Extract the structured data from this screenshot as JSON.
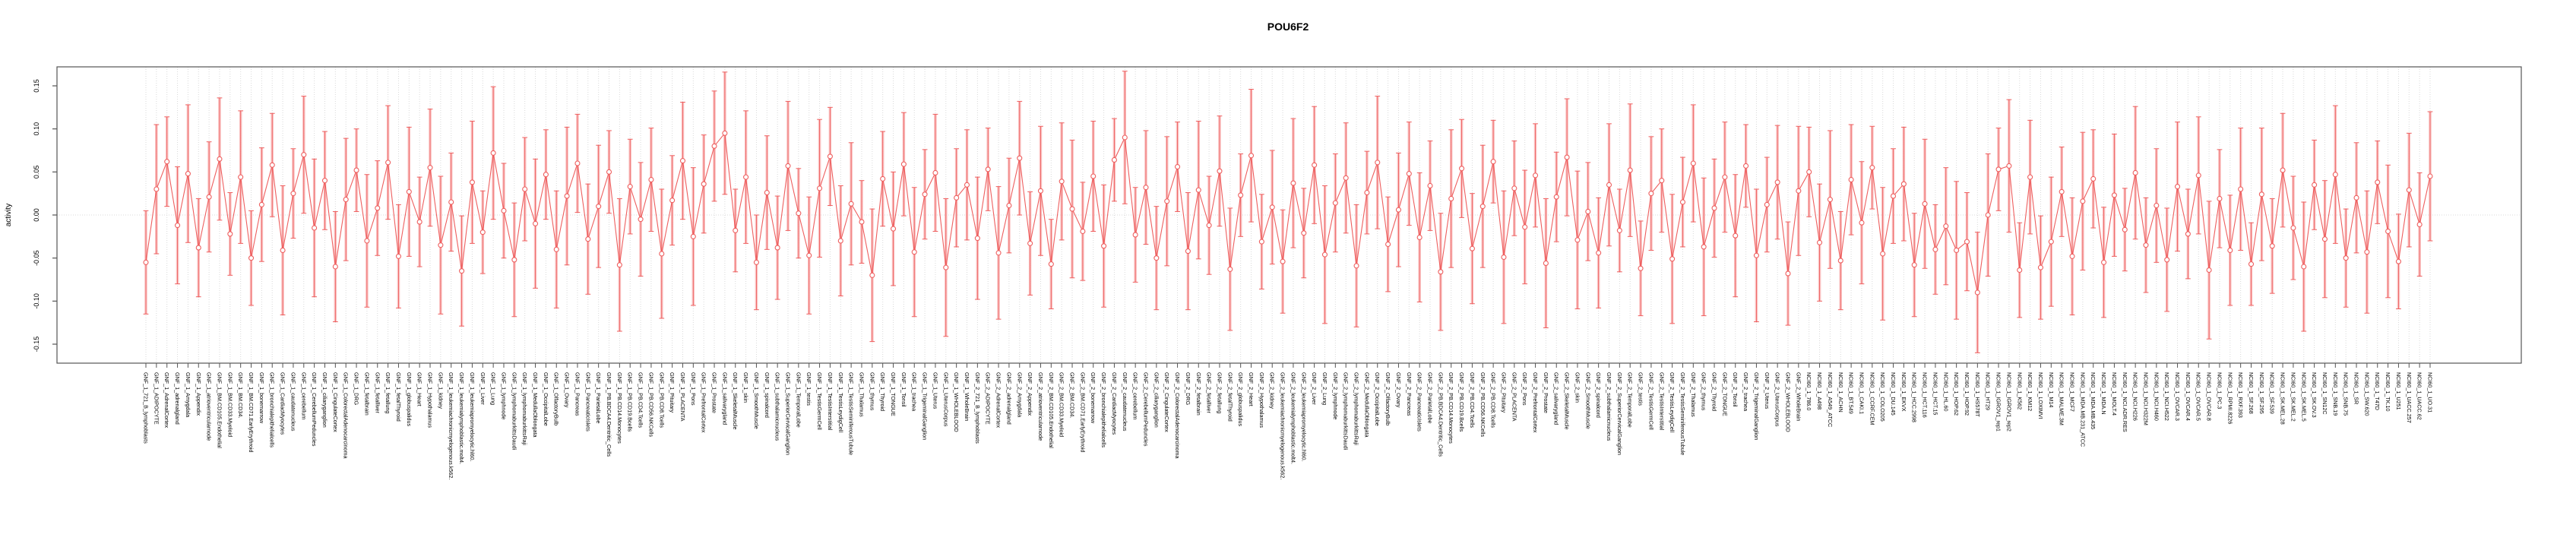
{
  "chart": {
    "title": "POU6F2",
    "ylabel": "activity"
  },
  "chart_data": {
    "type": "line",
    "title": "POU6F2",
    "xlabel": "",
    "ylabel": "activity",
    "ylim": [
      -0.172,
      0.172
    ],
    "yticks": [
      -0.15,
      -0.1,
      -0.05,
      0.0,
      0.05,
      0.1,
      0.15
    ],
    "grid": "vertical dotted gridline at every category; horizontal dotted line at 0.00",
    "legend_position": "none",
    "marker": "open-circle",
    "colors": {
      "series": "#ee5f5f",
      "errorbar_band": "#f9b6b6",
      "grid": "#d9d9d9",
      "box": "#555555",
      "text": "#000000"
    },
    "categories": [
      "GNF_1_721_B_lymphoblasts",
      "GNF_1_ADIPOCYTE",
      "GNF_1_AdrenalCortex",
      "GNF_1_adrenalgland",
      "GNF_1_Amygdala",
      "GNF_1_Appendix",
      "GNF_1_atrioventricularnode",
      "GNF_1_BM.CD105.Endothelial",
      "GNF_1_BM.CD33.Myeloid",
      "GNF_1_BM.CD34.",
      "GNF_1_BM.CD71.EarlyErythroid",
      "GNF_1_bonemarrow",
      "GNF_1_bronchialepithelialcells",
      "GNF_1_CardiacMyocytes",
      "GNF_1_caudatenucleus",
      "GNF_1_cerebellum",
      "GNF_1_CerebellumPeduncles",
      "GNF_1_ciliaryganglion",
      "GNF_1_CingulateCortex",
      "GNF_1_ColorectalAdenocarcinoma",
      "GNF_1_DRG",
      "GNF_1_fetalbrain",
      "GNF_1_fetalliver",
      "GNF_1_fetallung",
      "GNF_1_fetalThyroid",
      "GNF_1_globuspalidus",
      "GNF_1_Heart",
      "GNF_1_Hypothalamus",
      "GNF_1_kidney",
      "GNF_1_leukemiachronicmyelogenous.k562.",
      "GNF_1_leukemialymphoblastic.molt4.",
      "GNF_1_leukemiapromyelocytic.hl60.",
      "GNF_1_Liver",
      "GNF_1_Lung",
      "GNF_1_lymphnode",
      "GNF_1_lymphomaburkittsDaudi",
      "GNF_1_lymphomaburkittsRaji",
      "GNF_1_MedullaOblongata",
      "GNF_1_OccipitalLobe",
      "GNF_1_OlfactoryBulb",
      "GNF_1_Ovary",
      "GNF_1_Pancreas",
      "GNF_1_PancreaticIslets",
      "GNF_1_ParietalLobe",
      "GNF_1_PB.BDCA4.Dentritic_Cells",
      "GNF_1_PB.CD14.Monocytes",
      "GNF_1_PB.CD19.Bcells",
      "GNF_1_PB.CD4.Tcells",
      "GNF_1_PB.CD56.NKCells",
      "GNF_1_PB.CD8.Tcells",
      "GNF_1_Pituitary",
      "GNF_1_PLACENTA",
      "GNF_1_Pons",
      "GNF_1_PrefrontalCortex",
      "GNF_1_Prostate",
      "GNF_1_salivarygland",
      "GNF_1_SkeletalMuscle",
      "GNF_1_skin",
      "GNF_1_SmoothMuscle",
      "GNF_1_spinalcord",
      "GNF_1_subthalamicnucleus",
      "GNF_1_SuperiorCervicalGanglion",
      "GNF_1_TemporalLobe",
      "GNF_1_testis",
      "GNF_1_TestisGermCell",
      "GNF_1_TestisInterstitial",
      "GNF_1_TestisLeydigCell",
      "GNF_1_TestisSeminiferousTubule",
      "GNF_1_Thalamus",
      "GNF_1_thymus",
      "GNF_1_Thyroid",
      "GNF_1_TONGUE",
      "GNF_1_Tonsil",
      "GNF_1_trachea",
      "GNF_1_TrigeminalGanglion",
      "GNF_1_Uterus",
      "GNF_1_UterusCorpus",
      "GNF_1_WHOLEBLOOD",
      "GNF_1_WholeBrain",
      "GNF_2_721_B_lymphoblasts",
      "GNF_2_ADIPOCYTE",
      "GNF_2_AdrenalCortex",
      "GNF_2_adrenalgland",
      "GNF_2_Amygdala",
      "GNF_2_Appendix",
      "GNF_2_atrioventricularnode",
      "GNF_2_BM.CD105.Endothelial",
      "GNF_2_BM.CD33.Myeloid",
      "GNF_2_BM.CD34.",
      "GNF_2_BM.CD71.EarlyErythroid",
      "GNF_2_bonemarrow",
      "GNF_2_bronchialepithelialcells",
      "GNF_2_CardiacMyocytes",
      "GNF_2_caudatenucleus",
      "GNF_2_cerebellum",
      "GNF_2_CerebellumPeduncles",
      "GNF_2_ciliaryganglion",
      "GNF_2_CingulateCortex",
      "GNF_2_ColorectalAdenocarcinoma",
      "GNF_2_DRG",
      "GNF_2_fetalbrain",
      "GNF_2_fetalliver",
      "GNF_2_fetallung",
      "GNF_2_fetalThyroid",
      "GNF_2_globuspalidus",
      "GNF_2_Heart",
      "GNF_2_Hypothalamus",
      "GNF_2_kidney",
      "GNF_2_leukemiachronicmyelogenous.k562.",
      "GNF_2_leukemialymphoblastic.molt4.",
      "GNF_2_leukemiapromyelocytic.hl60.",
      "GNF_2_Liver",
      "GNF_2_Lung",
      "GNF_2_lymphnode",
      "GNF_2_lymphomaburkittsDaudi",
      "GNF_2_lymphomaburkittsRaji",
      "GNF_2_MedullaOblongata",
      "GNF_2_OccipitalLobe",
      "GNF_2_OlfactoryBulb",
      "GNF_2_Ovary",
      "GNF_2_Pancreas",
      "GNF_2_PancreaticIslets",
      "GNF_2_ParietalLobe",
      "GNF_2_PB.BDCA4.Dentritic_Cells",
      "GNF_2_PB.CD14.Monocytes",
      "GNF_2_PB.CD19.Bcells",
      "GNF_2_PB.CD4.Tcells",
      "GNF_2_PB.CD56.NKCells",
      "GNF_2_PB.CD8.Tcells",
      "GNF_2_Pituitary",
      "GNF_2_PLACENTA",
      "GNF_2_Pons",
      "GNF_2_PrefrontalCortex",
      "GNF_2_Prostate",
      "GNF_2_salivarygland",
      "GNF_2_SkeletalMuscle",
      "GNF_2_skin",
      "GNF_2_SmoothMuscle",
      "GNF_2_spinalcord",
      "GNF_2_subthalamicnucleus",
      "GNF_2_SuperiorCervicalGanglion",
      "GNF_2_TemporalLobe",
      "GNF_2_testis",
      "GNF_2_TestisGermCell",
      "GNF_2_TestisInterstitial",
      "GNF_2_TestisLeydigCell",
      "GNF_2_TestisSeminiferousTubule",
      "GNF_2_Thalamus",
      "GNF_2_thymus",
      "GNF_2_Thyroid",
      "GNF_2_TONGUE",
      "GNF_2_Tonsil",
      "GNF_2_trachea",
      "GNF_2_TrigeminalGanglion",
      "GNF_2_Uterus",
      "GNF_2_UterusCorpus",
      "GNF_2_WHOLEBLOOD",
      "GNF_2_WholeBrain",
      "NCI60_1_786.0",
      "NCI60_1_A498",
      "NCI60_1_A549_ATCC",
      "NCI60_1_ACHN",
      "NCI60_1_BT.549",
      "NCI60_1_CAKI.1",
      "NCI60_1_CCRF.CEM",
      "NCI60_1_COLO205",
      "NCI60_1_DU.145",
      "NCI60_1_EKVX",
      "NCI60_1_HCC.2998",
      "NCI60_1_HCT.116",
      "NCI60_1_HCT.15",
      "NCI60_1_HL.60",
      "NCI60_1_HOP.62",
      "NCI60_1_HOP.92",
      "NCI60_1_HS578T",
      "NCI60_1_HT29",
      "NCI60_1_IGROV1_rep1",
      "NCI60_1_IGROV1_rep2",
      "NCI60_1_K562",
      "NCI60_1_KM12",
      "NCI60_1_LOXIMVI",
      "NCI60_1_M14",
      "NCI60_1_MALME.3M",
      "NCI60_1_MCF7",
      "NCI60_1_MDA.MB.231_ATCC",
      "NCI60_1_MDA.MB.435",
      "NCI60_1_MDA.N",
      "NCI60_1_MOLT.4",
      "NCI60_1_NCI.ADR.RES",
      "NCI60_1_NCI.H226",
      "NCI60_1_NCI.H322M",
      "NCI60_1_NCI.H460",
      "NCI60_1_NCI.H522",
      "NCI60_1_OVCAR.3",
      "NCI60_1_OVCAR.4",
      "NCI60_1_OVCAR.5",
      "NCI60_1_OVCAR.8",
      "NCI60_1_PC.3",
      "NCI60_1_RPMI.8226",
      "NCI60_1_RXF.393",
      "NCI60_1_SF.268",
      "NCI60_1_SF.295",
      "NCI60_1_SF.539",
      "NCI60_1_SK.MEL.28",
      "NCI60_1_SK.MEL.2",
      "NCI60_1_SK.MEL.5",
      "NCI60_1_SK.OV.3",
      "NCI60_1_SN12C",
      "NCI60_1_SNB.19",
      "NCI60_1_SNB.75",
      "NCI60_1_SR",
      "NCI60_1_SW.620",
      "NCI60_1_T47D",
      "NCI60_1_TK.10",
      "NCI60_1_U251",
      "NCI60_1_UACC.257",
      "NCI60_1_UACC.62",
      "NCI60_1_UO.31"
    ],
    "values": [
      -0.055,
      0.03,
      0.062,
      -0.012,
      0.048,
      -0.038,
      0.021,
      0.065,
      -0.022,
      0.044,
      -0.05,
      0.012,
      0.058,
      -0.041,
      0.025,
      0.07,
      -0.015,
      0.04,
      -0.06,
      0.018,
      0.052,
      -0.03,
      0.008,
      0.061,
      -0.048,
      0.027,
      -0.008,
      0.055,
      -0.035,
      0.015,
      -0.065,
      0.038,
      -0.02,
      0.072,
      0.005,
      -0.052,
      0.03,
      -0.01,
      0.047,
      -0.04,
      0.022,
      0.06,
      -0.028,
      0.01,
      0.05,
      -0.058,
      0.033,
      -0.005,
      0.041,
      -0.045,
      0.017,
      0.063,
      -0.025,
      0.036,
      0.08,
      0.095,
      -0.018,
      0.044,
      -0.055,
      0.026,
      -0.038,
      0.057,
      0.002,
      -0.047,
      0.031,
      0.068,
      -0.03,
      0.013,
      -0.008,
      -0.07,
      0.042,
      -0.016,
      0.059,
      -0.043,
      0.024,
      0.049,
      -0.061,
      0.02,
      0.035,
      -0.027,
      0.053,
      -0.044,
      0.011,
      0.066,
      -0.033,
      0.028,
      -0.057,
      0.039,
      0.007,
      -0.019,
      0.045,
      -0.036,
      0.064,
      0.09,
      -0.023,
      0.032,
      -0.05,
      0.016,
      0.056,
      -0.042,
      0.029,
      -0.012,
      0.051,
      -0.063,
      0.023,
      0.069,
      -0.031,
      0.009,
      -0.054,
      0.037,
      -0.021,
      0.058,
      -0.046,
      0.014,
      0.043,
      -0.059,
      0.026,
      0.061,
      -0.034,
      0.006,
      0.048,
      -0.026,
      0.034,
      -0.066,
      0.019,
      0.054,
      -0.039,
      0.01,
      0.062,
      -0.049,
      0.031,
      -0.014,
      0.046,
      -0.056,
      0.021,
      0.067,
      -0.029,
      0.004,
      -0.044,
      0.035,
      -0.018,
      0.052,
      -0.062,
      0.025,
      0.04,
      -0.051,
      0.015,
      0.06,
      -0.037,
      0.008,
      0.044,
      -0.024,
      0.057,
      -0.047,
      0.012,
      0.038,
      -0.068,
      0.028,
      0.05,
      -0.032,
      0.018,
      -0.053,
      0.041,
      -0.009,
      0.055,
      -0.045,
      0.022,
      0.036,
      -0.058,
      0.013,
      -0.04,
      -0.013,
      -0.041,
      -0.031,
      -0.09,
      0.0,
      0.053,
      0.057,
      -0.064,
      0.044,
      -0.061,
      -0.031,
      0.027,
      -0.048,
      0.016,
      0.042,
      -0.055,
      0.023,
      -0.017,
      0.049,
      -0.035,
      0.011,
      -0.052,
      0.033,
      -0.022,
      0.046,
      -0.064,
      0.019,
      -0.041,
      0.03,
      -0.057,
      0.024,
      -0.036,
      0.052,
      -0.015,
      -0.06,
      0.035,
      -0.028,
      0.047,
      -0.05,
      0.02,
      -0.043,
      0.038,
      -0.019,
      -0.054,
      0.029,
      -0.011,
      0.045
    ],
    "errors": [
      0.06,
      0.075,
      0.052,
      0.068,
      0.08,
      0.057,
      0.064,
      0.071,
      0.048,
      0.077,
      0.055,
      0.066,
      0.06,
      0.075,
      0.052,
      0.068,
      0.08,
      0.057,
      0.064,
      0.071,
      0.048,
      0.077,
      0.055,
      0.066,
      0.06,
      0.075,
      0.052,
      0.068,
      0.08,
      0.057,
      0.064,
      0.071,
      0.048,
      0.077,
      0.055,
      0.066,
      0.06,
      0.075,
      0.052,
      0.068,
      0.08,
      0.057,
      0.064,
      0.071,
      0.048,
      0.077,
      0.055,
      0.066,
      0.06,
      0.075,
      0.052,
      0.068,
      0.08,
      0.057,
      0.064,
      0.071,
      0.048,
      0.077,
      0.055,
      0.066,
      0.06,
      0.075,
      0.052,
      0.068,
      0.08,
      0.057,
      0.064,
      0.071,
      0.048,
      0.077,
      0.055,
      0.066,
      0.06,
      0.075,
      0.052,
      0.068,
      0.08,
      0.057,
      0.064,
      0.071,
      0.048,
      0.077,
      0.055,
      0.066,
      0.06,
      0.075,
      0.052,
      0.068,
      0.08,
      0.057,
      0.064,
      0.071,
      0.048,
      0.077,
      0.055,
      0.066,
      0.06,
      0.075,
      0.052,
      0.068,
      0.08,
      0.057,
      0.064,
      0.071,
      0.048,
      0.077,
      0.055,
      0.066,
      0.06,
      0.075,
      0.052,
      0.068,
      0.08,
      0.057,
      0.064,
      0.071,
      0.048,
      0.077,
      0.055,
      0.066,
      0.06,
      0.075,
      0.052,
      0.068,
      0.08,
      0.057,
      0.064,
      0.071,
      0.048,
      0.077,
      0.055,
      0.066,
      0.06,
      0.075,
      0.052,
      0.068,
      0.08,
      0.057,
      0.064,
      0.071,
      0.048,
      0.077,
      0.055,
      0.066,
      0.06,
      0.075,
      0.052,
      0.068,
      0.08,
      0.057,
      0.064,
      0.071,
      0.048,
      0.077,
      0.055,
      0.066,
      0.06,
      0.075,
      0.052,
      0.068,
      0.08,
      0.057,
      0.064,
      0.071,
      0.048,
      0.077,
      0.055,
      0.066,
      0.06,
      0.075,
      0.052,
      0.068,
      0.08,
      0.057,
      0.07,
      0.071,
      0.048,
      0.077,
      0.055,
      0.066,
      0.06,
      0.075,
      0.052,
      0.068,
      0.08,
      0.057,
      0.064,
      0.071,
      0.048,
      0.077,
      0.055,
      0.066,
      0.06,
      0.075,
      0.052,
      0.068,
      0.08,
      0.057,
      0.064,
      0.071,
      0.048,
      0.077,
      0.055,
      0.066,
      0.06,
      0.075,
      0.052,
      0.068,
      0.08,
      0.057,
      0.064,
      0.071,
      0.048,
      0.077,
      0.055,
      0.066,
      0.06,
      0.075
    ]
  }
}
